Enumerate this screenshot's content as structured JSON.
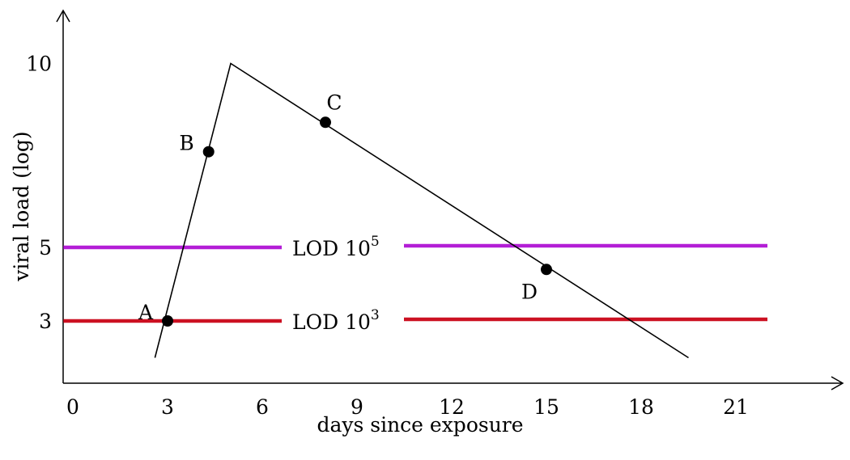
{
  "chart_data": {
    "type": "line",
    "title": "",
    "xlabel": "days since exposure",
    "ylabel": "viral load (log)",
    "x_ticks": [
      "0",
      "3",
      "6",
      "9",
      "12",
      "15",
      "18",
      "21"
    ],
    "y_ticks": [
      "3",
      "5",
      "10"
    ],
    "grid": false,
    "series": [
      {
        "color": "#000000",
        "points": [
          [
            2.6,
            2.0
          ],
          [
            5.0,
            10.0
          ],
          [
            19.5,
            2.0
          ]
        ]
      }
    ],
    "points": [
      {
        "label": "A",
        "x": 3.0,
        "y": 3.0,
        "label_side": "left"
      },
      {
        "label": "B",
        "x": 4.3,
        "y": 7.6,
        "label_side": "left"
      },
      {
        "label": "C",
        "x": 8.0,
        "y": 8.4,
        "label_side": "above"
      },
      {
        "label": "D",
        "x": 15.0,
        "y": 4.4,
        "label_side": "below-left"
      }
    ],
    "reference_lines": [
      {
        "label_base": "LOD 10",
        "label_exp": "5",
        "y": 5,
        "x_start": -0.3,
        "x_end": 22.0,
        "color": "#b31ed6"
      },
      {
        "label_base": "LOD 10",
        "label_exp": "3",
        "y": 3,
        "x_start": -0.3,
        "x_end": 22.0,
        "color": "#cc1122"
      }
    ]
  }
}
